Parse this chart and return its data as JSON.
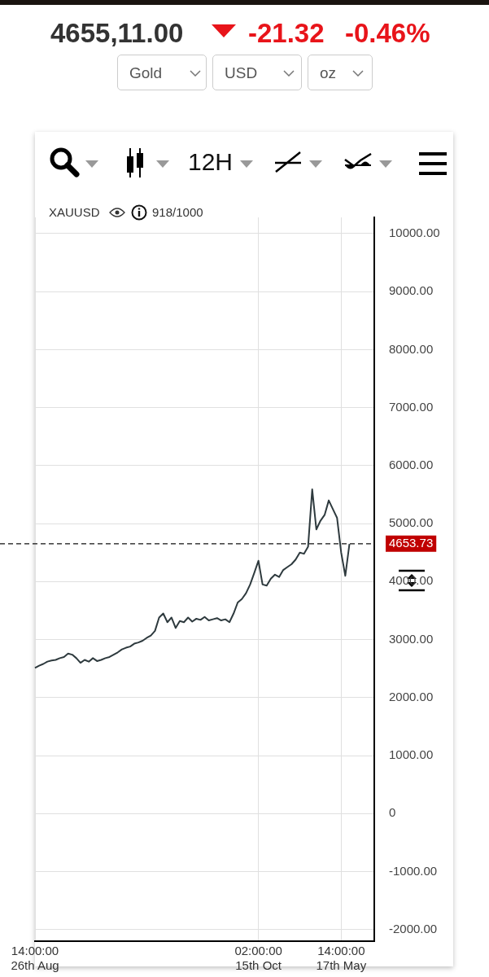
{
  "chart_data": {
    "type": "line",
    "title": "4655,11.00",
    "annotations": [
      "-21.32",
      "-0.46%",
      "Gold",
      "USD",
      "oz",
      "12H",
      "XAUUSD",
      "918/1000"
    ],
    "categories": [
      "14:00:00 26th Aug",
      null,
      null,
      null,
      null,
      null,
      null,
      null,
      null,
      null,
      null,
      null,
      null,
      null,
      null,
      null,
      null,
      null,
      null,
      null,
      null,
      null,
      null,
      null,
      null,
      null,
      null,
      null,
      null,
      null,
      null,
      null,
      null,
      null,
      null,
      null,
      null,
      null,
      null,
      null,
      null,
      null,
      null,
      null,
      null,
      null,
      null,
      null,
      null,
      null,
      null,
      null,
      null,
      null,
      "02:00:00 15th Oct",
      null,
      null,
      null,
      null,
      null,
      null,
      null,
      null,
      null,
      null,
      null,
      null,
      null,
      null,
      null,
      null,
      null,
      null,
      null,
      "14:00:00 17th May",
      null,
      null,
      null,
      null,
      null,
      null,
      null,
      null
    ],
    "series": [
      {
        "color": "#2e3a3e",
        "values": [
          2510,
          2550,
          2580,
          2620,
          2640,
          2650,
          2680,
          2700,
          2760,
          2740,
          2680,
          2600,
          2650,
          2620,
          2680,
          2630,
          2650,
          2680,
          2700,
          2740,
          2780,
          2830,
          2860,
          2880,
          2930,
          2950,
          2980,
          3030,
          3070,
          3150,
          3380,
          3450,
          3300,
          3380,
          3200,
          3320,
          3300,
          3380,
          3310,
          3360,
          3340,
          3390,
          3330,
          3350,
          3370,
          3330,
          3350,
          3300,
          3450,
          3640,
          3700,
          3800,
          3950,
          4150,
          4360,
          3950,
          3930,
          4050,
          4120,
          4080,
          4200,
          4250,
          4300,
          4380,
          4500,
          4480,
          4600,
          5590,
          4900,
          5050,
          5150,
          5400,
          5250,
          5100,
          4500,
          4100,
          4650,
          null,
          null,
          null,
          null,
          null,
          null
        ]
      }
    ],
    "ylim": [
      -2200,
      10280
    ],
    "yticks": [
      {
        "value": -2000,
        "label": "-2000.00"
      },
      {
        "value": -1000,
        "label": "-1000.00"
      },
      0,
      {
        "value": 1000,
        "label": "1000.00"
      },
      {
        "value": 2000,
        "label": "2000.00"
      },
      {
        "value": 3000,
        "label": "3000.00"
      },
      {
        "value": 4000,
        "label": "4000.00"
      },
      {
        "value": 5000,
        "label": "5000.00"
      },
      {
        "value": 6000,
        "label": "6000.00"
      },
      {
        "value": 7000,
        "label": "7000.00"
      },
      {
        "value": 8000,
        "label": "8000.00"
      },
      {
        "value": 9000,
        "label": "9000.00"
      },
      {
        "value": 10000,
        "label": "10000.00"
      }
    ],
    "ref_lines": [
      {
        "axis": "y",
        "value": 4653.73,
        "label": "4653.73",
        "color": "#111111",
        "line_style": "dashed"
      }
    ],
    "grid": true,
    "legend": false,
    "marker": "none",
    "line_style": "solid"
  }
}
